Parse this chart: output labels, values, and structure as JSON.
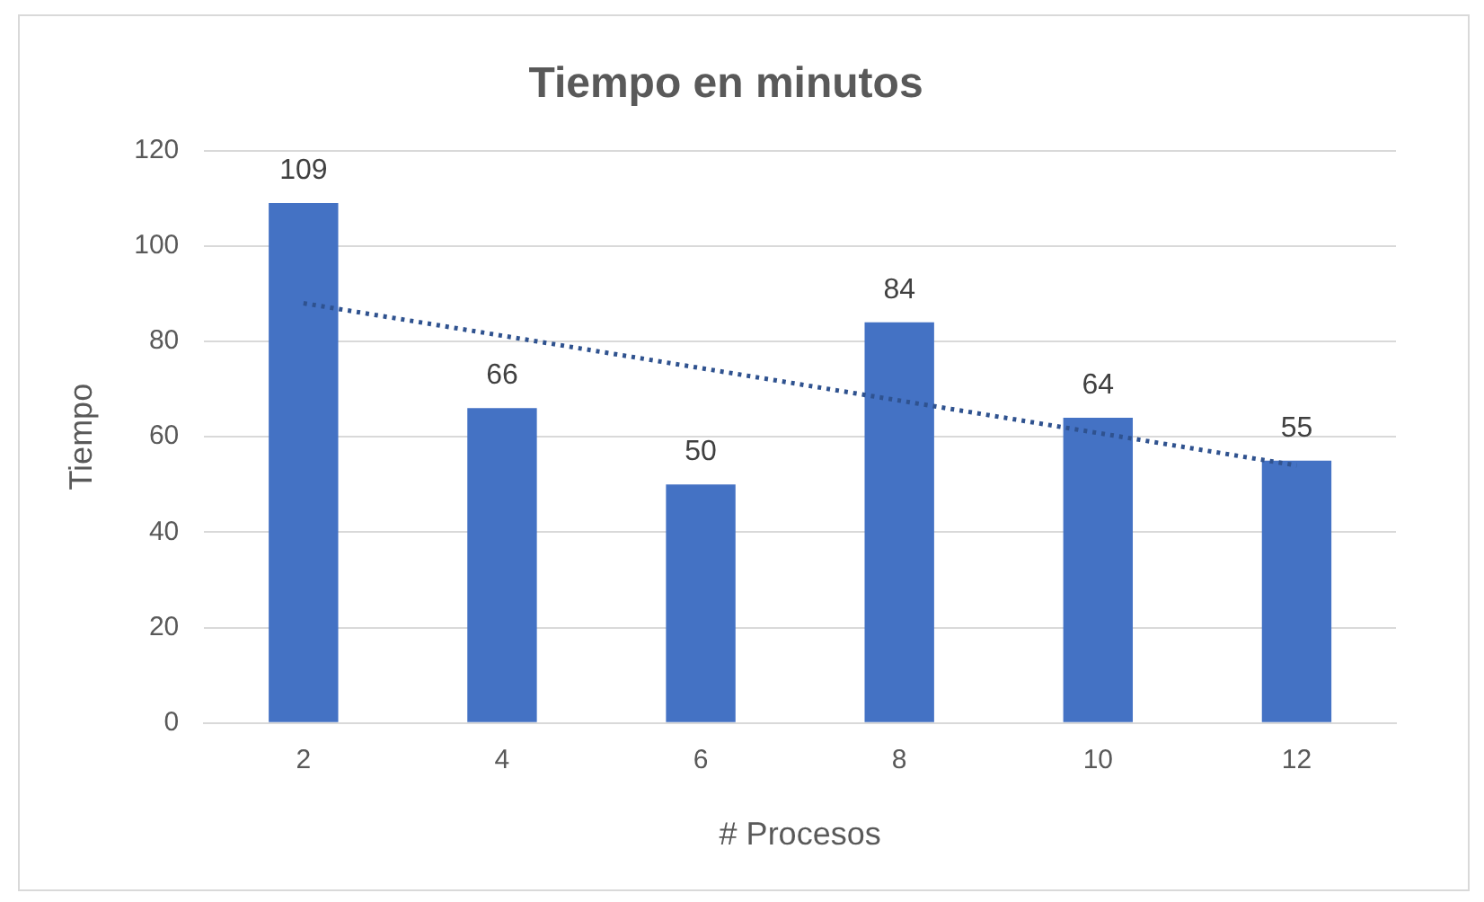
{
  "chart_data": {
    "type": "bar",
    "title": "Tiempo en minutos",
    "xlabel": "# Procesos",
    "ylabel": "Tiempo",
    "categories": [
      "2",
      "4",
      "6",
      "8",
      "10",
      "12"
    ],
    "series": [
      {
        "color": "#4472c4",
        "values": [
          109,
          66,
          50,
          84,
          64,
          55
        ],
        "value_labels": [
          "109",
          "66",
          "50",
          "84",
          "64",
          "55"
        ]
      },
      {
        "type": "line",
        "color": "#2f528f",
        "x": [
          "2",
          "12"
        ],
        "values": [
          88,
          54
        ],
        "line_style": "dotted",
        "marker": "none"
      }
    ],
    "ylim": [
      0,
      120
    ],
    "yticks": [
      0,
      20,
      40,
      60,
      80,
      100,
      120
    ],
    "grid": "y",
    "legend": false
  }
}
